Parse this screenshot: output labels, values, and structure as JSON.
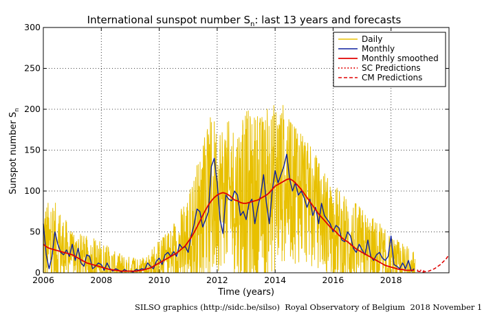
{
  "chart_data": {
    "type": "line",
    "title": "International sunspot number S",
    "title_subscript": "n",
    "title_suffix": ": last 13 years and forecasts",
    "xlabel": "Time (years)",
    "ylabel": "Sunspot number S",
    "ylabel_subscript": "n",
    "xlim": [
      2006,
      2020
    ],
    "ylim": [
      0,
      300
    ],
    "x_ticks": [
      2006,
      2008,
      2010,
      2012,
      2014,
      2016,
      2018
    ],
    "x_tick_labels": [
      "2006",
      "2008",
      "2010",
      "2012",
      "2014",
      "2016",
      "2018"
    ],
    "y_ticks": [
      0,
      50,
      100,
      150,
      200,
      250,
      300
    ],
    "y_tick_labels": [
      "0",
      "50",
      "100",
      "150",
      "200",
      "250",
      "300"
    ],
    "grid": true,
    "legend_position": "top-right",
    "series": [
      {
        "name": "Daily",
        "color": "#e8c000",
        "style": "solid",
        "daily_envelope_x": [
          2006.0,
          2006.5,
          2007.0,
          2007.5,
          2008.0,
          2008.5,
          2009.0,
          2009.5,
          2010.0,
          2010.5,
          2011.0,
          2011.5,
          2011.8,
          2012.0,
          2012.5,
          2013.0,
          2013.5,
          2013.9,
          2014.1,
          2014.5,
          2015.0,
          2015.5,
          2016.0,
          2016.5,
          2017.0,
          2017.5,
          2018.0,
          2018.5,
          2018.83
        ],
        "daily_envelope_max": [
          90,
          85,
          50,
          45,
          40,
          25,
          20,
          20,
          40,
          60,
          100,
          160,
          195,
          190,
          185,
          200,
          195,
          205,
          220,
          185,
          165,
          140,
          110,
          95,
          80,
          65,
          45,
          35,
          25
        ]
      },
      {
        "name": "Monthly",
        "color": "#0b1f9e",
        "style": "solid",
        "x": [
          2006.0,
          2006.1,
          2006.2,
          2006.3,
          2006.4,
          2006.5,
          2006.6,
          2006.7,
          2006.8,
          2006.9,
          2007.0,
          2007.1,
          2007.2,
          2007.3,
          2007.4,
          2007.5,
          2007.6,
          2007.7,
          2007.8,
          2007.9,
          2008.0,
          2008.1,
          2008.2,
          2008.3,
          2008.4,
          2008.5,
          2008.6,
          2008.7,
          2008.8,
          2008.9,
          2009.0,
          2009.1,
          2009.2,
          2009.3,
          2009.4,
          2009.5,
          2009.6,
          2009.7,
          2009.8,
          2009.9,
          2010.0,
          2010.1,
          2010.2,
          2010.3,
          2010.4,
          2010.5,
          2010.6,
          2010.7,
          2010.8,
          2010.9,
          2011.0,
          2011.1,
          2011.2,
          2011.3,
          2011.4,
          2011.5,
          2011.6,
          2011.7,
          2011.8,
          2011.9,
          2012.0,
          2012.1,
          2012.2,
          2012.3,
          2012.4,
          2012.5,
          2012.6,
          2012.7,
          2012.8,
          2012.9,
          2013.0,
          2013.1,
          2013.2,
          2013.3,
          2013.4,
          2013.5,
          2013.6,
          2013.7,
          2013.8,
          2013.9,
          2014.0,
          2014.1,
          2014.2,
          2014.3,
          2014.4,
          2014.5,
          2014.6,
          2014.7,
          2014.8,
          2014.9,
          2015.0,
          2015.1,
          2015.2,
          2015.3,
          2015.4,
          2015.5,
          2015.6,
          2015.7,
          2015.8,
          2015.9,
          2016.0,
          2016.1,
          2016.2,
          2016.3,
          2016.4,
          2016.5,
          2016.6,
          2016.7,
          2016.8,
          2016.9,
          2017.0,
          2017.1,
          2017.2,
          2017.3,
          2017.4,
          2017.5,
          2017.6,
          2017.7,
          2017.8,
          2017.9,
          2018.0,
          2018.1,
          2018.2,
          2018.3,
          2018.4,
          2018.5,
          2018.6,
          2018.7,
          2018.8
        ],
        "values": [
          60,
          22,
          5,
          20,
          50,
          35,
          25,
          22,
          28,
          20,
          35,
          15,
          30,
          12,
          8,
          22,
          20,
          5,
          8,
          12,
          10,
          3,
          12,
          5,
          2,
          5,
          3,
          1,
          4,
          2,
          2,
          1,
          4,
          3,
          5,
          4,
          12,
          8,
          5,
          14,
          18,
          10,
          22,
          25,
          20,
          26,
          20,
          35,
          30,
          32,
          25,
          45,
          58,
          78,
          75,
          56,
          65,
          75,
          130,
          140,
          110,
          65,
          48,
          95,
          90,
          88,
          100,
          95,
          70,
          75,
          65,
          85,
          90,
          60,
          80,
          95,
          120,
          85,
          60,
          100,
          125,
          110,
          120,
          130,
          145,
          115,
          100,
          110,
          95,
          100,
          92,
          80,
          90,
          70,
          80,
          60,
          85,
          70,
          65,
          60,
          50,
          58,
          55,
          40,
          38,
          50,
          45,
          30,
          25,
          35,
          28,
          22,
          40,
          20,
          15,
          22,
          25,
          18,
          15,
          20,
          45,
          10,
          8,
          5,
          12,
          5,
          15,
          2,
          5
        ],
        "smoothed": [
          35,
          32,
          30,
          29,
          28,
          27,
          26,
          25,
          24,
          23,
          22,
          20,
          18,
          16,
          14,
          12,
          11,
          10,
          9,
          8,
          7,
          6,
          5,
          4,
          3.5,
          3,
          2.5,
          2,
          2,
          2,
          2,
          2,
          2,
          2.5,
          3,
          4,
          5,
          6,
          8,
          10,
          12,
          14,
          16,
          18,
          20,
          22,
          24,
          27,
          30,
          33,
          38,
          43,
          49,
          56,
          63,
          70,
          77,
          83,
          88,
          92,
          95,
          97,
          98,
          97,
          95,
          92,
          89,
          88,
          86,
          85,
          85,
          86,
          87,
          88,
          89,
          91,
          93,
          95,
          98,
          102,
          106,
          108,
          110,
          112,
          114,
          115,
          113,
          110,
          106,
          102,
          97,
          92,
          87,
          82,
          77,
          72,
          68,
          64,
          60,
          56,
          53,
          50,
          46,
          43,
          40,
          38,
          35,
          32,
          29,
          27,
          25,
          23,
          21,
          19,
          17,
          15,
          13,
          11,
          9,
          8,
          7,
          6,
          5,
          4,
          4,
          3,
          3,
          3,
          3
        ]
      },
      {
        "name": "Monthly smoothed",
        "color": "#e00000",
        "style": "solid"
      },
      {
        "name": "SC Predictions",
        "color": "#e00000",
        "style": "dotted",
        "x": [
          2018.9,
          2019.0,
          2019.2
        ],
        "values": [
          3,
          3,
          2
        ]
      },
      {
        "name": "CM Predictions",
        "color": "#e00000",
        "style": "dashed",
        "x": [
          2018.9,
          2019.1,
          2019.3,
          2019.5,
          2019.7,
          2019.9,
          2020.0
        ],
        "values": [
          2,
          1,
          2,
          5,
          10,
          17,
          22
        ]
      }
    ]
  },
  "footer": "SILSO graphics (http://sidc.be/silso)  Royal Observatory of Belgium  2018 November 1"
}
